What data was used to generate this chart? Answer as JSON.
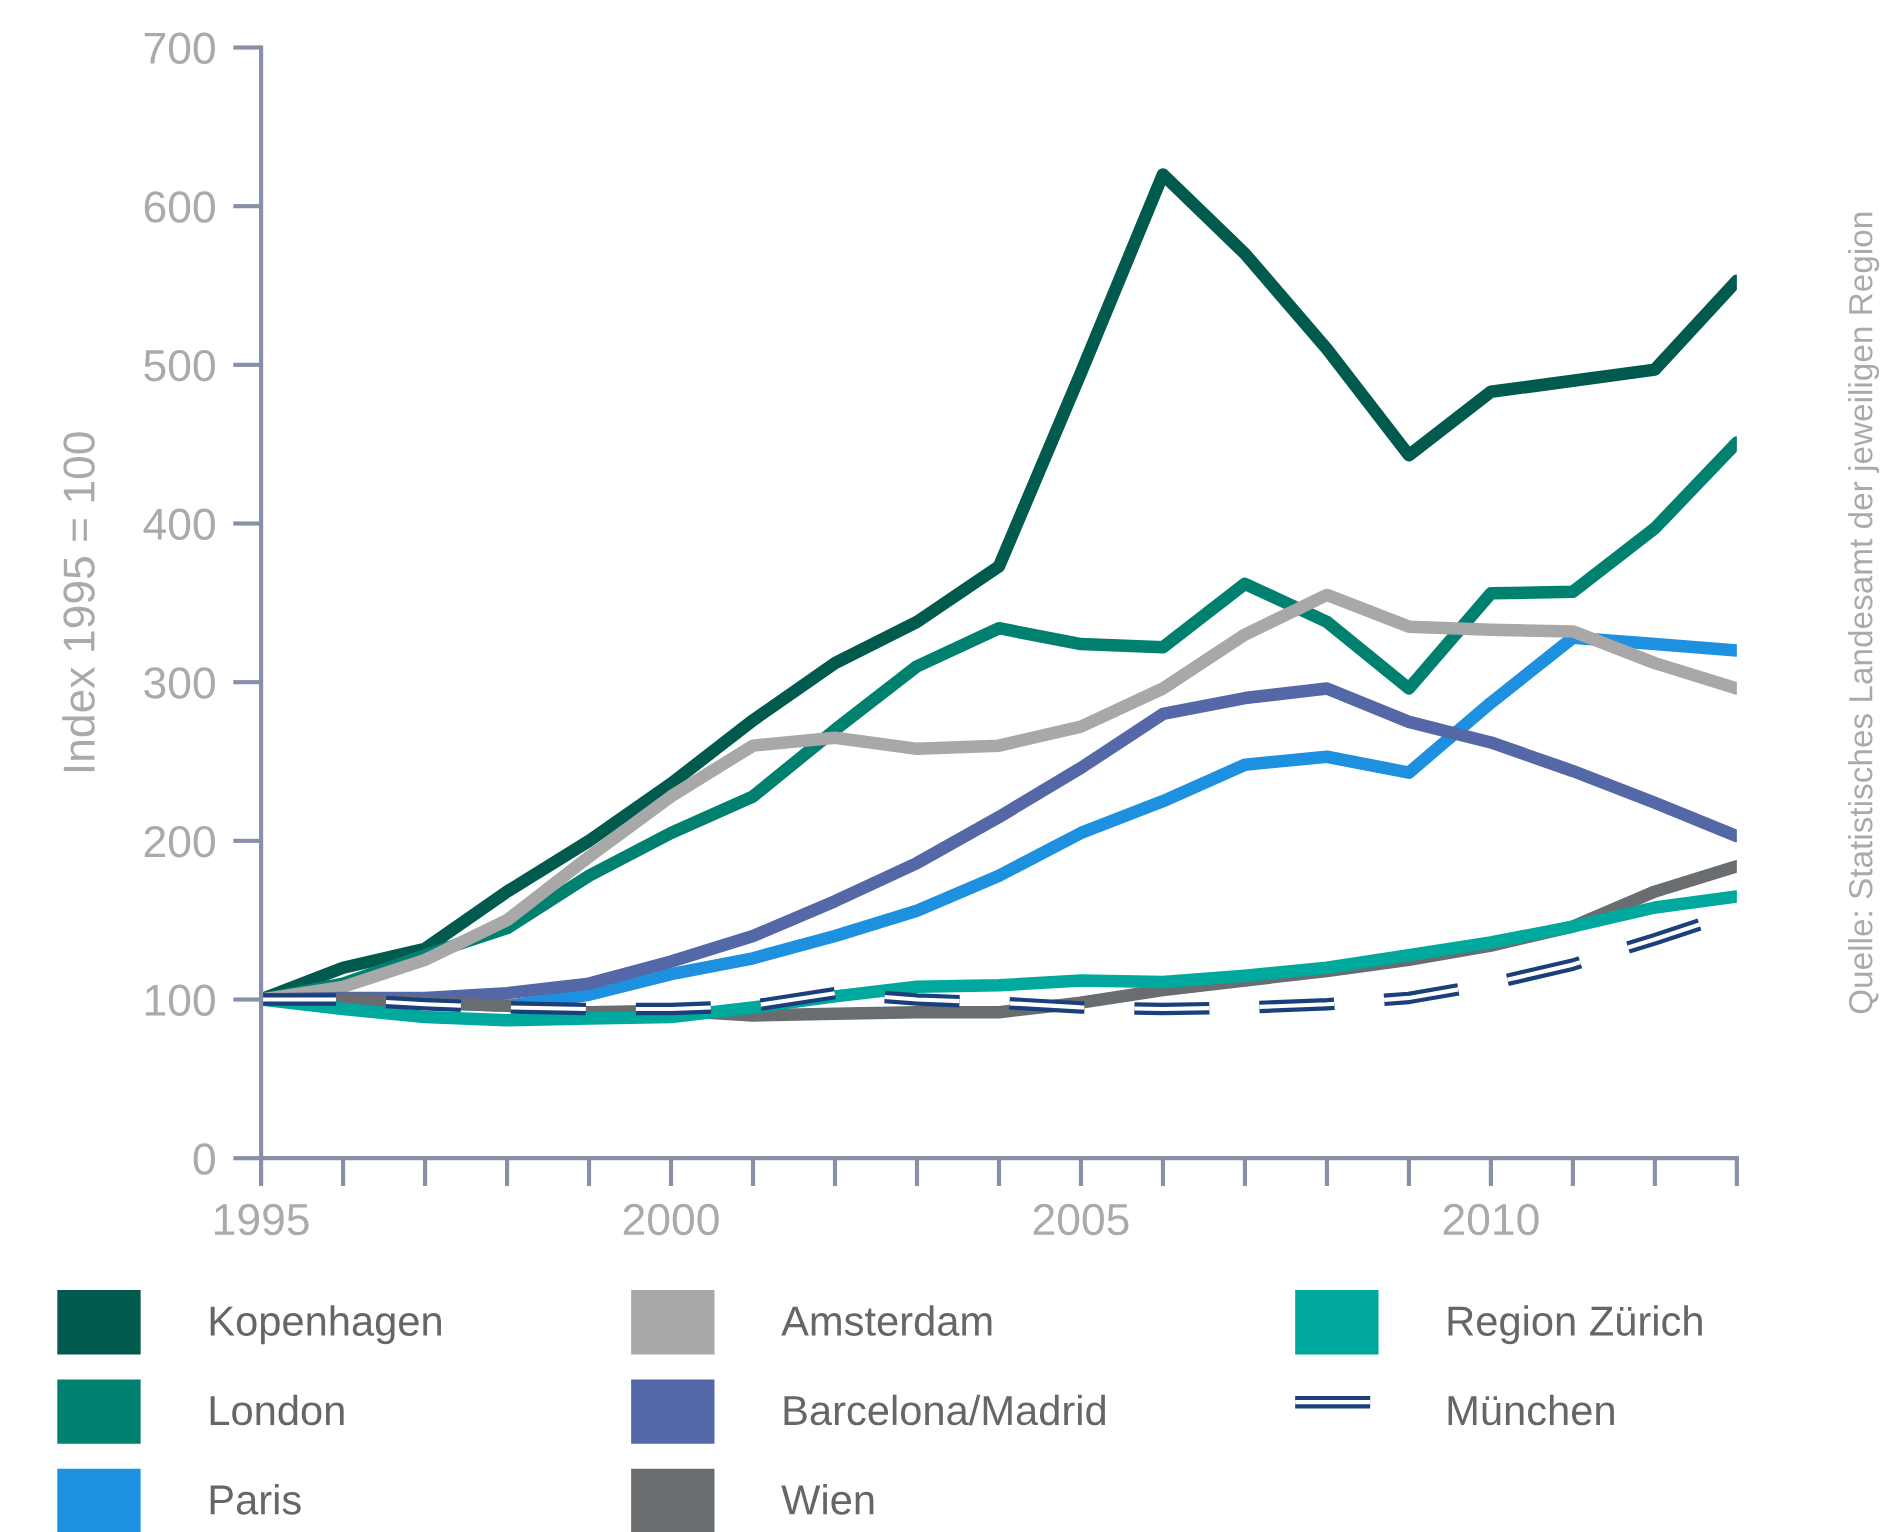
{
  "chart_data": {
    "type": "line",
    "ylabel": "Index 1995 = 100",
    "annotations": [
      "Quelle: Statistisches Landesamt der jeweiligen Region"
    ],
    "x": [
      1995,
      1996,
      1997,
      1998,
      1999,
      2000,
      2001,
      2002,
      2003,
      2004,
      2005,
      2006,
      2007,
      2008,
      2009,
      2010,
      2011,
      2012,
      2013
    ],
    "xlim": [
      1995,
      2013
    ],
    "xticks": [
      1995,
      {
        "value": 1996,
        "label": null
      },
      {
        "value": 1997,
        "label": null
      },
      {
        "value": 1998,
        "label": null
      },
      {
        "value": 1999,
        "label": null
      },
      2000,
      {
        "value": 2001,
        "label": null
      },
      {
        "value": 2002,
        "label": null
      },
      {
        "value": 2003,
        "label": null
      },
      {
        "value": 2004,
        "label": null
      },
      2005,
      {
        "value": 2006,
        "label": null
      },
      {
        "value": 2007,
        "label": null
      },
      {
        "value": 2008,
        "label": null
      },
      {
        "value": 2009,
        "label": null
      },
      2010,
      {
        "value": 2011,
        "label": null
      },
      {
        "value": 2012,
        "label": null
      },
      {
        "value": 2013,
        "label": null
      }
    ],
    "ylim": [
      0,
      700
    ],
    "yticks": [
      0,
      100,
      200,
      300,
      400,
      500,
      600,
      700
    ],
    "grid": false,
    "legend": "bottom",
    "marker": "none",
    "series": [
      {
        "name": "Kopenhagen",
        "color": "#005a4e",
        "values": [
          100,
          120,
          132,
          168,
          200,
          236,
          276,
          312,
          338,
          373,
          495,
          620,
          570,
          510,
          443,
          483,
          490,
          497,
          553
        ]
      },
      {
        "name": "London",
        "color": "#00806f",
        "values": [
          100,
          110,
          128,
          145,
          178,
          205,
          228,
          270,
          310,
          334,
          324,
          322,
          362,
          338,
          296,
          356,
          357,
          397,
          451
        ]
      },
      {
        "name": "Paris",
        "color": "#1e90e0",
        "values": [
          null,
          null,
          98,
          96,
          103,
          116,
          126,
          140,
          156,
          178,
          205,
          225,
          248,
          253,
          243,
          287,
          328,
          324,
          320
        ]
      },
      {
        "name": "Amsterdam",
        "color": "#a8a8a8",
        "values": [
          100,
          108,
          125,
          150,
          190,
          228,
          260,
          265,
          258,
          260,
          272,
          296,
          330,
          355,
          335,
          333,
          332,
          312,
          296
        ]
      },
      {
        "name": "Barcelona/Madrid",
        "color": "#5468a8",
        "values": [
          100,
          101,
          101,
          104,
          110,
          124,
          140,
          162,
          186,
          215,
          246,
          280,
          290,
          296,
          275,
          262,
          244,
          224,
          203
        ]
      },
      {
        "name": "Wien",
        "color": "#6a6d70",
        "values": [
          100,
          100,
          98,
          96,
          92,
          93,
          90,
          91,
          92,
          92,
          98,
          106,
          112,
          118,
          125,
          134,
          146,
          168,
          184
        ]
      },
      {
        "name": "Region Zürich",
        "color": "#00a99d",
        "values": [
          100,
          94,
          89,
          87,
          88,
          89,
          95,
          102,
          108,
          109,
          112,
          111,
          115,
          120,
          128,
          136,
          146,
          158,
          165
        ]
      },
      {
        "name": "München",
        "color": "#1a3f7a",
        "line_style": "dashed",
        "values": [
          100,
          100,
          97,
          95,
          94,
          94,
          96,
          104,
          100,
          98,
          95,
          94,
          95,
          97,
          101,
          110,
          122,
          138,
          155
        ]
      }
    ]
  }
}
